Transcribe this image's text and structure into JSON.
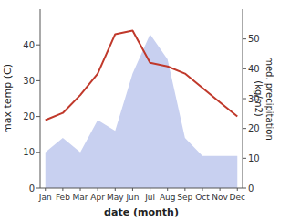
{
  "chart_data": {
    "type": "line",
    "xlabel": "date (month)",
    "ylabel": "max temp (C)",
    "y2label": "med. precipitation\n(kg/m2)",
    "categories": [
      "Jan",
      "Feb",
      "Mar",
      "Apr",
      "May",
      "Jun",
      "Jul",
      "Aug",
      "Sep",
      "Oct",
      "Nov",
      "Dec"
    ],
    "series": [
      {
        "type": "area",
        "color": "#c8d0f0",
        "values": [
          10,
          14,
          10,
          19,
          16,
          32,
          43,
          36,
          14,
          9,
          9,
          9
        ]
      },
      {
        "type": "line",
        "color": "#c0392b",
        "values": [
          19,
          21,
          26,
          32,
          43,
          44,
          35,
          34,
          32,
          28,
          24,
          20
        ]
      }
    ],
    "ylim": [
      0,
      50
    ],
    "yticks": [
      0,
      10,
      20,
      30,
      40
    ],
    "y2lim": [
      0,
      60
    ],
    "y2ticks": [
      0,
      10,
      20,
      30,
      40,
      50
    ],
    "grid": false
  }
}
